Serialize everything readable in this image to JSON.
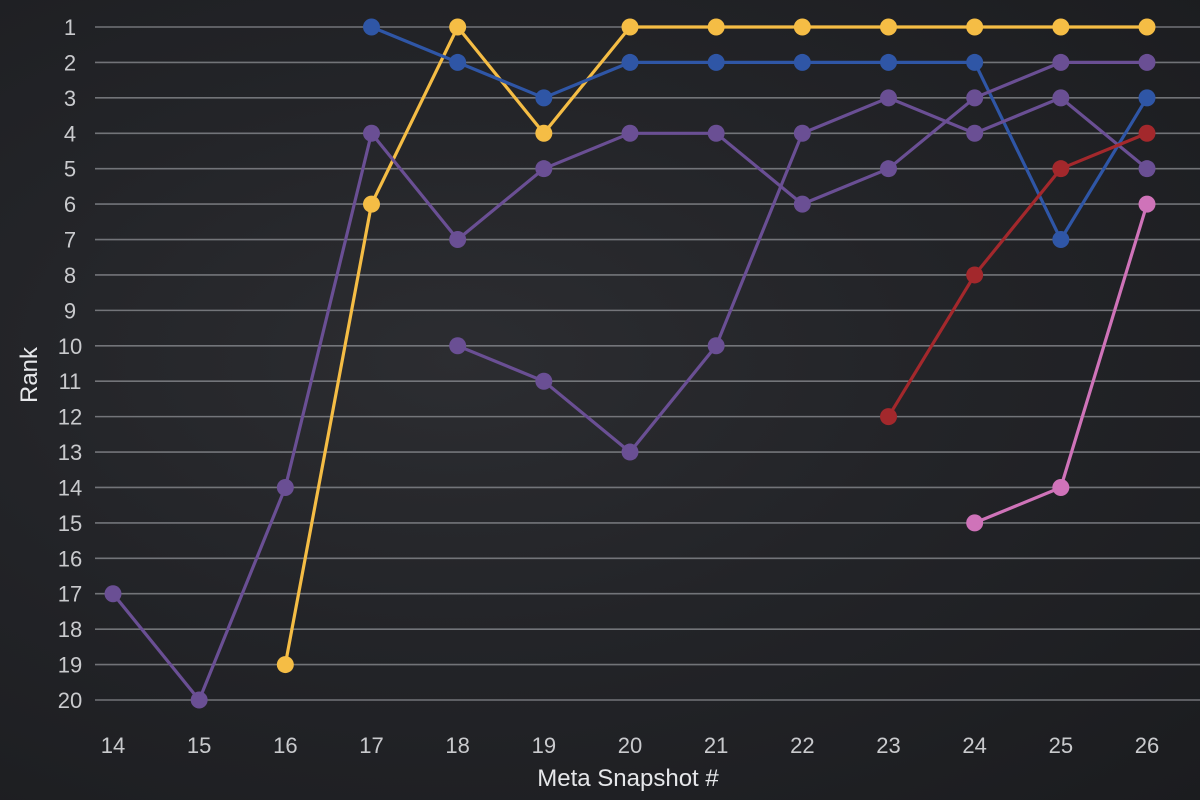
{
  "chart_data": {
    "type": "line",
    "title": "",
    "xlabel": "Meta Snapshot #",
    "ylabel": "Rank",
    "x": [
      14,
      15,
      16,
      17,
      18,
      19,
      20,
      21,
      22,
      23,
      24,
      25,
      26
    ],
    "xlim": [
      14,
      26
    ],
    "ylim": [
      1,
      20
    ],
    "y_inverted": true,
    "y_ticks": [
      1,
      2,
      3,
      4,
      5,
      6,
      7,
      8,
      9,
      10,
      11,
      12,
      13,
      14,
      15,
      16,
      17,
      18,
      19,
      20
    ],
    "grid": "horizontal",
    "legend": "none",
    "series": [
      {
        "color": "#f5bd45",
        "points": [
          [
            16,
            19
          ],
          [
            17,
            6
          ],
          [
            18,
            1
          ],
          [
            19,
            4
          ],
          [
            20,
            1
          ],
          [
            21,
            1
          ],
          [
            22,
            1
          ],
          [
            23,
            1
          ],
          [
            24,
            1
          ],
          [
            25,
            1
          ],
          [
            26,
            1
          ]
        ]
      },
      {
        "color": "#2f56a6",
        "points": [
          [
            17,
            1
          ],
          [
            18,
            2
          ],
          [
            19,
            3
          ],
          [
            20,
            2
          ],
          [
            21,
            2
          ],
          [
            22,
            2
          ],
          [
            23,
            2
          ],
          [
            24,
            2
          ],
          [
            25,
            7
          ],
          [
            26,
            3
          ]
        ]
      },
      {
        "color": "#6a4f94",
        "points": [
          [
            14,
            17
          ],
          [
            15,
            20
          ],
          [
            16,
            14
          ],
          [
            17,
            4
          ],
          [
            18,
            7
          ],
          [
            19,
            5
          ],
          [
            20,
            4
          ],
          [
            21,
            4
          ],
          [
            22,
            6
          ],
          [
            23,
            5
          ],
          [
            24,
            3
          ],
          [
            25,
            2
          ],
          [
            26,
            2
          ]
        ]
      },
      {
        "color": "#6a4f94",
        "points": [
          [
            18,
            10
          ],
          [
            19,
            11
          ],
          [
            20,
            13
          ],
          [
            21,
            10
          ],
          [
            22,
            4
          ],
          [
            23,
            3
          ],
          [
            24,
            4
          ],
          [
            25,
            3
          ],
          [
            26,
            5
          ]
        ]
      },
      {
        "color": "#a3282c",
        "points": [
          [
            23,
            12
          ],
          [
            24,
            8
          ],
          [
            25,
            5
          ],
          [
            26,
            4
          ]
        ]
      },
      {
        "color": "#cf73b9",
        "points": [
          [
            24,
            15
          ],
          [
            25,
            14
          ],
          [
            26,
            6
          ]
        ]
      }
    ]
  }
}
